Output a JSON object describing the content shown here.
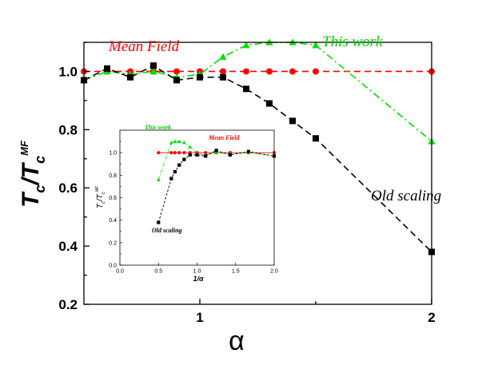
{
  "chart_data": [
    {
      "type": "line",
      "xlabel": "α",
      "ylabel": {
        "base": "T",
        "sub1": "c",
        "sep": "/T",
        "sub2": "c",
        "sup": "MF"
      },
      "xlim": [
        0.5,
        2.0
      ],
      "ylim": [
        0.2,
        1.1
      ],
      "xticks": [
        1,
        2
      ],
      "xtick_labels": [
        "1",
        "2"
      ],
      "yticks": [
        0.2,
        0.4,
        0.6,
        0.8,
        1.0
      ],
      "ytick_labels": [
        "0.2",
        "0.4",
        "0.6",
        "0.8",
        "1.0"
      ],
      "series": [
        {
          "label": "Mean Field",
          "color": "#ff0000",
          "marker": "circle",
          "dash": "8,5",
          "x": [
            0.5,
            0.6,
            0.7,
            0.8,
            0.9,
            1.0,
            1.1,
            1.2,
            1.3,
            1.4,
            1.5,
            2.0
          ],
          "y": [
            1.0,
            1.0,
            1.0,
            1.0,
            1.0,
            1.0,
            1.0,
            1.0,
            1.0,
            1.0,
            1.0,
            1.0
          ]
        },
        {
          "label": "This work",
          "color": "#00e000",
          "marker": "triangle",
          "dash": "9,4,2,4",
          "x": [
            0.5,
            0.6,
            0.7,
            0.8,
            0.9,
            1.0,
            1.1,
            1.2,
            1.3,
            1.4,
            1.5,
            2.0
          ],
          "y": [
            0.97,
            1.0,
            0.99,
            1.0,
            0.98,
            0.99,
            1.05,
            1.09,
            1.1,
            1.1,
            1.09,
            0.76
          ]
        },
        {
          "label": "Old scaling",
          "color": "#000000",
          "marker": "square",
          "dash": "8,5",
          "x": [
            0.5,
            0.6,
            0.7,
            0.8,
            0.9,
            1.0,
            1.1,
            1.2,
            1.3,
            1.4,
            1.5,
            2.0
          ],
          "y": [
            0.97,
            1.01,
            0.98,
            1.02,
            0.97,
            0.98,
            0.98,
            0.94,
            0.89,
            0.83,
            0.77,
            0.38
          ]
        }
      ],
      "annotations": [
        "Mean Field",
        "This work",
        "Old scaling"
      ]
    },
    {
      "type": "line",
      "inset": true,
      "xlabel": "1/α",
      "ylabel": {
        "base": "T",
        "sub1": "c",
        "sep": "/T",
        "sub2": "c",
        "sup": "MF"
      },
      "xlim": [
        0.0,
        2.0
      ],
      "ylim": [
        0.0,
        1.2
      ],
      "xticks": [
        0.0,
        0.5,
        1.0,
        1.5,
        2.0
      ],
      "xtick_labels": [
        "0.0",
        "0.5",
        "1.0",
        "1.5",
        "2.0"
      ],
      "yticks": [
        0.0,
        0.2,
        0.4,
        0.6,
        0.8,
        1.0
      ],
      "ytick_labels": [
        "0.0",
        "0.2",
        "0.4",
        "0.6",
        "0.8",
        "1.0"
      ],
      "series": [
        {
          "label": "Mean Field",
          "color": "#ff0000",
          "marker": "circle",
          "dash": "",
          "x": [
            0.5,
            0.667,
            0.714,
            0.769,
            0.833,
            0.909,
            1.0,
            1.111,
            1.25,
            1.429,
            1.667,
            2.0
          ],
          "y": [
            1.0,
            1.0,
            1.0,
            1.0,
            1.0,
            1.0,
            1.0,
            1.0,
            1.0,
            1.0,
            1.0,
            1.0
          ]
        },
        {
          "label": "This work",
          "color": "#00e000",
          "marker": "triangle",
          "dash": "4,2,1,2",
          "x": [
            0.5,
            0.667,
            0.714,
            0.769,
            0.833,
            0.909,
            1.0,
            1.111,
            1.25,
            1.429,
            1.667,
            2.0
          ],
          "y": [
            0.76,
            1.09,
            1.1,
            1.1,
            1.09,
            1.05,
            0.99,
            0.98,
            1.0,
            0.99,
            1.0,
            0.97
          ]
        },
        {
          "label": "Old scaling",
          "color": "#000000",
          "marker": "square",
          "dash": "3,2",
          "x": [
            0.5,
            0.667,
            0.714,
            0.769,
            0.833,
            0.909,
            1.0,
            1.111,
            1.25,
            1.429,
            1.667,
            2.0
          ],
          "y": [
            0.38,
            0.77,
            0.83,
            0.89,
            0.94,
            0.98,
            0.98,
            0.97,
            1.02,
            0.98,
            1.01,
            0.97
          ]
        }
      ],
      "annotations": [
        "This work",
        "Mean Field",
        "Old scaling"
      ]
    }
  ]
}
